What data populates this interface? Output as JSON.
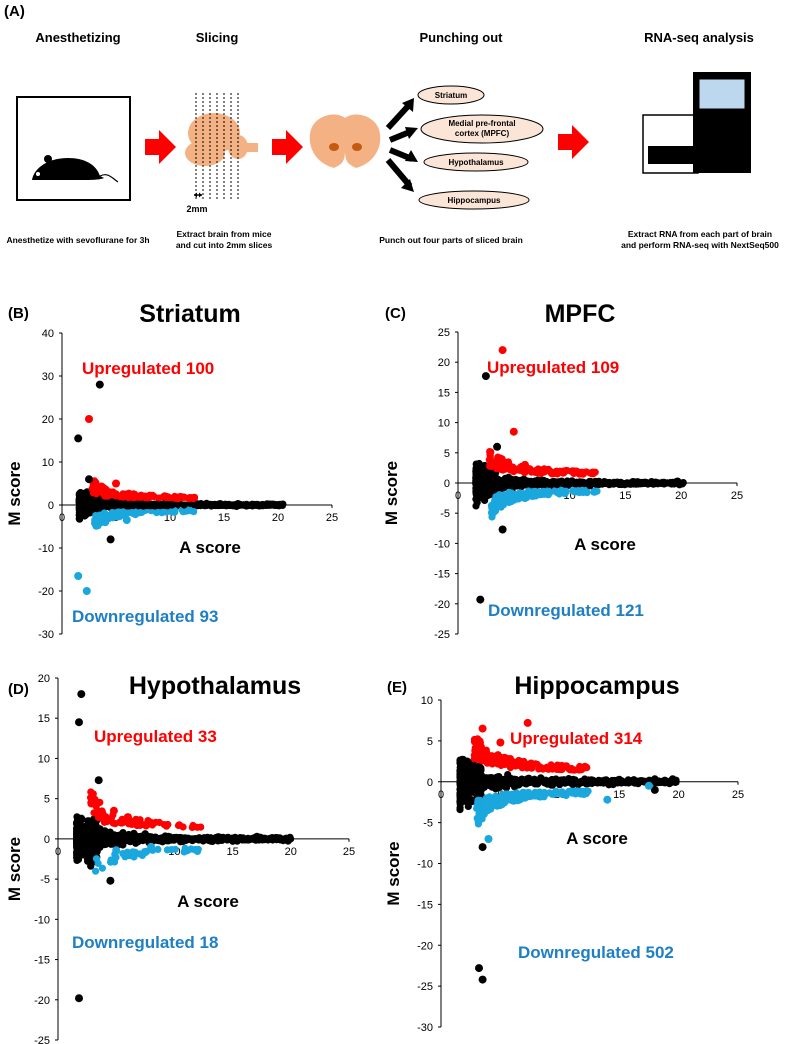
{
  "panel_a": {
    "label": "(A)",
    "steps": [
      {
        "title": "Anesthetizing",
        "caption_lines": [
          "Anesthetize with sevoflurane for 3h"
        ]
      },
      {
        "title": "Slicing",
        "caption_lines": [
          "Extract brain from mice",
          "and cut into 2mm slices"
        ],
        "scale_label": "2mm"
      },
      {
        "title": "Punching out",
        "caption_lines": [
          "Punch out four parts of sliced brain"
        ]
      },
      {
        "title": "RNA-seq analysis",
        "caption_lines": [
          "Extract RNA from each part of brain",
          "and perform RNA-seq with NextSeq500"
        ]
      }
    ],
    "regions": [
      {
        "lines": [
          "Striatum"
        ]
      },
      {
        "lines": [
          "Medial pre-frontal",
          "cortex (MPFC)"
        ]
      },
      {
        "lines": [
          "Hypothalamus"
        ]
      },
      {
        "lines": [
          "Hippocampus"
        ]
      }
    ],
    "colors": {
      "arrow": "#ff0000",
      "brain": "#f4b183",
      "punch": "#c55a11",
      "ellipse": "#fbe5d6",
      "screen": "#bdd7ee"
    }
  },
  "colors": {
    "up": "#ff0000",
    "down": "#1aa7dd",
    "neutral": "#000000",
    "up_text": "#ff0000",
    "down_text": "#1e7fc4"
  },
  "chart_data": [
    {
      "id": "striatum",
      "type": "scatter",
      "panel_label": "(B)",
      "title": "Striatum",
      "xlabel": "A score",
      "ylabel": "M score",
      "xlim": [
        0,
        25
      ],
      "ylim": [
        -30,
        40
      ],
      "xticks": [
        "0",
        "5",
        "10",
        "15",
        "20",
        "25"
      ],
      "yticks": [
        "40",
        "30",
        "20",
        "10",
        "0",
        "-10",
        "-20",
        "-30"
      ],
      "annotations": {
        "up": "Upregulated 100",
        "down": "Downregulated 93"
      },
      "up_count": 100,
      "down_count": 93,
      "tail_end": 20.5,
      "outliers": {
        "neutral": [
          [
            3.5,
            28
          ],
          [
            1.5,
            15.5
          ],
          [
            2.5,
            6
          ],
          [
            4.5,
            -8
          ]
        ],
        "up": [
          [
            2.5,
            20
          ],
          [
            5,
            5
          ]
        ],
        "down": [
          [
            1.5,
            -16.5
          ],
          [
            2.3,
            -20
          ],
          [
            6,
            -3.5
          ],
          [
            4,
            -4
          ]
        ]
      }
    },
    {
      "id": "mpfc",
      "type": "scatter",
      "panel_label": "(C)",
      "title": "MPFC",
      "xlabel": "A score",
      "ylabel": "M score",
      "xlim": [
        0,
        25
      ],
      "ylim": [
        -25,
        25
      ],
      "xticks": [
        "0",
        "5",
        "10",
        "15",
        "20",
        "25"
      ],
      "yticks": [
        "25",
        "20",
        "15",
        "10",
        "5",
        "0",
        "-5",
        "-10",
        "-15",
        "-20",
        "-25"
      ],
      "annotations": {
        "up": "Upregulated 109",
        "down": "Downregulated 121"
      },
      "up_count": 109,
      "down_count": 121,
      "tail_end": 20.2,
      "outliers": {
        "neutral": [
          [
            2.5,
            17.7
          ],
          [
            2,
            -19.3
          ],
          [
            4,
            -7.7
          ],
          [
            3.5,
            6
          ]
        ],
        "up": [
          [
            4,
            22
          ],
          [
            5,
            8.5
          ],
          [
            6,
            3
          ]
        ],
        "down": [
          [
            6,
            -2.5
          ],
          [
            9,
            -1.5
          ]
        ]
      }
    },
    {
      "id": "hypothalamus",
      "type": "scatter",
      "panel_label": "(D)",
      "title": "Hypothalamus",
      "xlabel": "A score",
      "ylabel": "M score",
      "xlim": [
        0,
        25
      ],
      "ylim": [
        -25,
        20
      ],
      "xticks": [
        "0",
        "5",
        "10",
        "15",
        "20",
        "25"
      ],
      "yticks": [
        "20",
        "15",
        "10",
        "5",
        "0",
        "-5",
        "-10",
        "-15",
        "-20",
        "-25"
      ],
      "annotations": {
        "up": "Upregulated 33",
        "down": "Downregulated 18"
      },
      "up_count": 33,
      "down_count": 18,
      "tail_end": 20,
      "outliers": {
        "neutral": [
          [
            2,
            18
          ],
          [
            1.8,
            14.5
          ],
          [
            3.5,
            7.3
          ],
          [
            1.8,
            -19.8
          ],
          [
            4.5,
            -5.2
          ]
        ],
        "up": [
          [
            3.5,
            2.7
          ],
          [
            4.8,
            3.5
          ]
        ],
        "down": [
          [
            5,
            -1.4
          ],
          [
            8,
            -1
          ]
        ]
      }
    },
    {
      "id": "hippocampus",
      "type": "scatter",
      "panel_label": "(E)",
      "title": "Hippocampus",
      "xlabel": "A score",
      "ylabel": "M score",
      "xlim": [
        0,
        25
      ],
      "ylim": [
        -30,
        10
      ],
      "xticks": [
        "0",
        "5",
        "10",
        "15",
        "20",
        "25"
      ],
      "yticks": [
        "10",
        "5",
        "0",
        "-5",
        "-10",
        "-15",
        "-20",
        "-25",
        "-30"
      ],
      "annotations": {
        "up": "Upregulated 314",
        "down": "Downregulated 502"
      },
      "up_count": 314,
      "down_count": 502,
      "tail_end": 19.8,
      "outliers": {
        "neutral": [
          [
            3.2,
            -22.8
          ],
          [
            3.5,
            -24.2
          ],
          [
            3.5,
            -8
          ],
          [
            19.5,
            0.3
          ],
          [
            18,
            0.3
          ],
          [
            18,
            -1
          ]
        ],
        "up": [
          [
            7.3,
            7.2
          ],
          [
            3.5,
            6.5
          ],
          [
            5,
            4.8
          ]
        ],
        "down": [
          [
            17.5,
            -0.5
          ],
          [
            14,
            -2.2
          ],
          [
            4,
            -7
          ]
        ]
      }
    }
  ]
}
